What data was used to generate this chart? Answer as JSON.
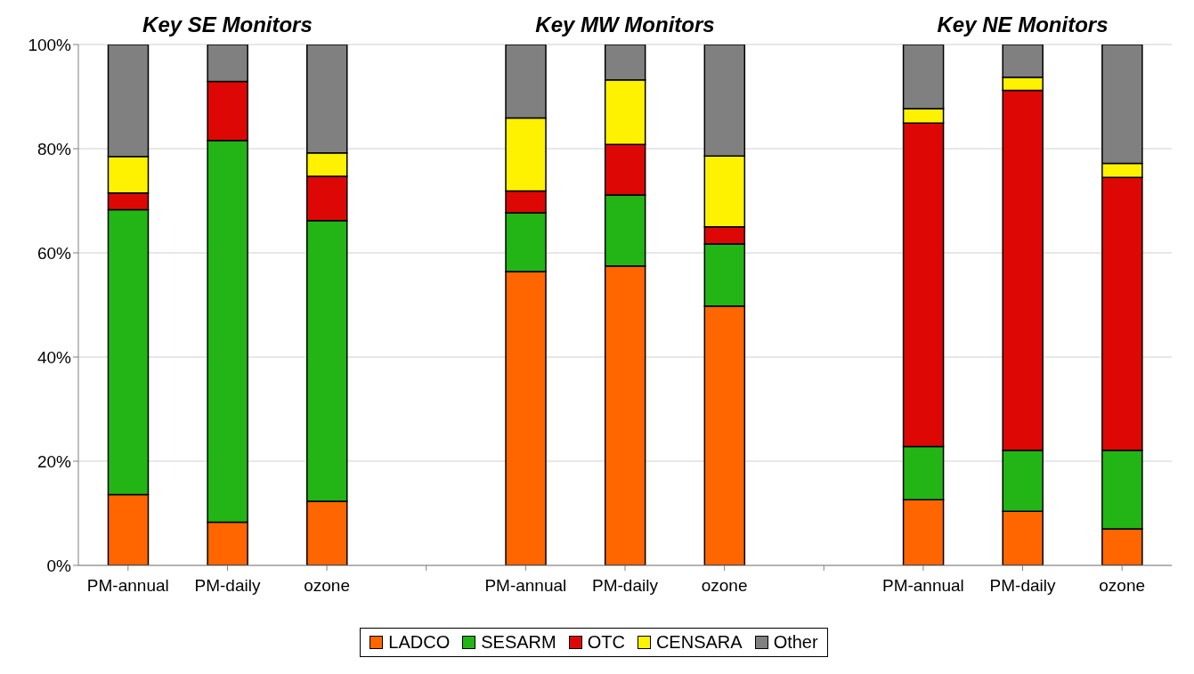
{
  "chart_data": {
    "type": "bar",
    "stacked": true,
    "categories": [
      "PM-annual",
      "PM-daily",
      "ozone",
      null,
      "PM-annual",
      "PM-daily",
      "ozone",
      null,
      "PM-annual",
      "PM-daily",
      "ozone"
    ],
    "series": [
      {
        "name": "LADCO",
        "color": "#ff6600",
        "values": [
          13.6,
          8.3,
          12.3,
          null,
          56.4,
          57.5,
          49.8,
          null,
          12.6,
          10.4,
          7.0
        ]
      },
      {
        "name": "SESARM",
        "color": "#22b515",
        "values": [
          54.7,
          73.3,
          53.9,
          null,
          11.3,
          13.6,
          11.9,
          null,
          10.2,
          11.7,
          15.1
        ]
      },
      {
        "name": "OTC",
        "color": "#dd0806",
        "values": [
          3.2,
          11.3,
          8.5,
          null,
          4.2,
          9.7,
          3.3,
          null,
          62.1,
          69.1,
          52.4
        ]
      },
      {
        "name": "CENSARA",
        "color": "#fff200",
        "values": [
          7.0,
          null,
          4.5,
          null,
          14.0,
          12.4,
          13.6,
          null,
          2.8,
          2.5,
          2.7
        ]
      },
      {
        "name": "Other",
        "color": "#808080",
        "values": [
          21.5,
          7.1,
          20.8,
          null,
          14.1,
          6.8,
          21.4,
          null,
          12.3,
          6.3,
          22.8
        ]
      }
    ],
    "ylim": [
      0,
      100
    ],
    "yticks": [
      {
        "value": 0,
        "label": "0%"
      },
      {
        "value": 20,
        "label": "20%"
      },
      {
        "value": 40,
        "label": "40%"
      },
      {
        "value": 60,
        "label": "60%"
      },
      {
        "value": 80,
        "label": "80%"
      },
      {
        "value": 100,
        "label": "100%"
      }
    ],
    "grid": "y",
    "legend": "bottom",
    "annotations": [
      "Key SE Monitors",
      "Key MW Monitors",
      "Key NE Monitors"
    ]
  }
}
